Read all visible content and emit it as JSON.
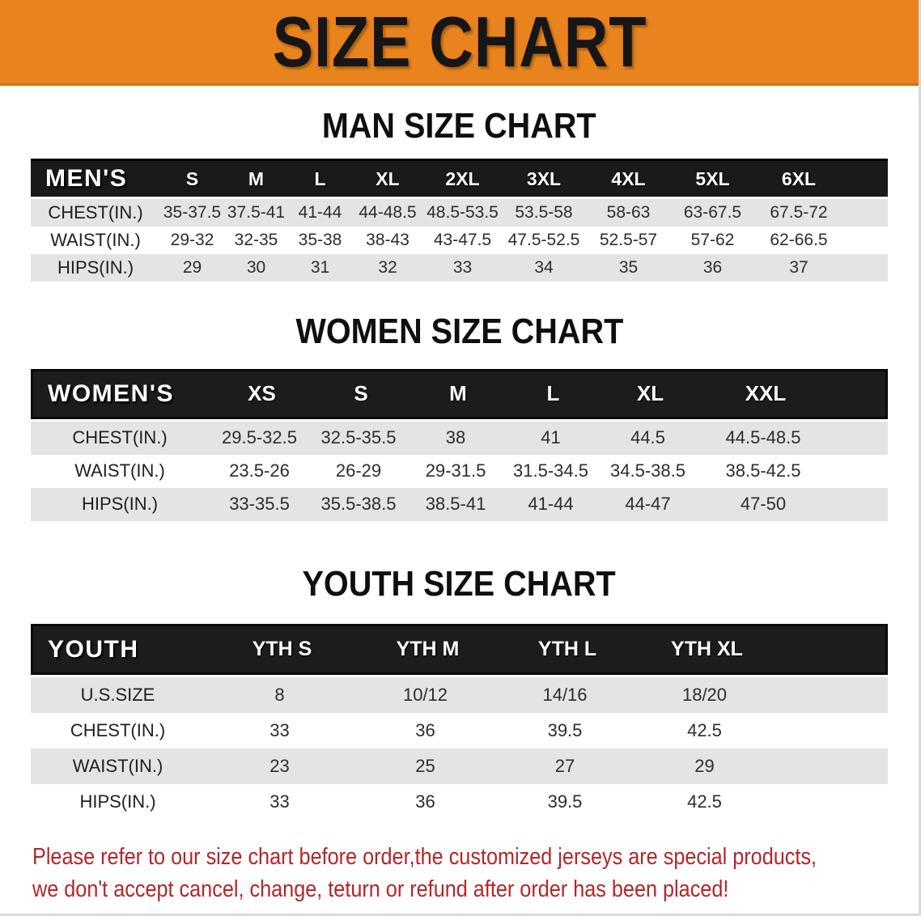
{
  "banner": {
    "title": "SIZE CHART",
    "bg_color": "#E8831D"
  },
  "colors": {
    "table_header_bg": "#1A1A1A",
    "row_stripe": "#E4E4E4",
    "footer_text": "#B2262B"
  },
  "sections": [
    {
      "heading": "MAN SIZE CHART",
      "table": {
        "header_label": "MEN'S",
        "columns": [
          "S",
          "M",
          "L",
          "XL",
          "2XL",
          "3XL",
          "4XL",
          "5XL",
          "6XL"
        ],
        "rows": [
          {
            "label": "CHEST(IN.)",
            "values": [
              "35-37.5",
              "37.5-41",
              "41-44",
              "44-48.5",
              "48.5-53.5",
              "53.5-58",
              "58-63",
              "63-67.5",
              "67.5-72"
            ]
          },
          {
            "label": "WAIST(IN.)",
            "values": [
              "29-32",
              "32-35",
              "35-38",
              "38-43",
              "43-47.5",
              "47.5-52.5",
              "52.5-57",
              "57-62",
              "62-66.5"
            ]
          },
          {
            "label": "HIPS(IN.)",
            "values": [
              "29",
              "30",
              "31",
              "32",
              "33",
              "34",
              "35",
              "36",
              "37"
            ]
          }
        ]
      }
    },
    {
      "heading": "WOMEN SIZE CHART",
      "table": {
        "header_label": "WOMEN'S",
        "columns": [
          "XS",
          "S",
          "M",
          "L",
          "XL",
          "XXL"
        ],
        "rows": [
          {
            "label": "CHEST(IN.)",
            "values": [
              "29.5-32.5",
              "32.5-35.5",
              "38",
              "41",
              "44.5",
              "44.5-48.5"
            ]
          },
          {
            "label": "WAIST(IN.)",
            "values": [
              "23.5-26",
              "26-29",
              "29-31.5",
              "31.5-34.5",
              "34.5-38.5",
              "38.5-42.5"
            ]
          },
          {
            "label": "HIPS(IN.)",
            "values": [
              "33-35.5",
              "35.5-38.5",
              "38.5-41",
              "41-44",
              "44-47",
              "47-50"
            ]
          }
        ]
      }
    },
    {
      "heading": "YOUTH SIZE CHART",
      "table": {
        "header_label": "YOUTH",
        "columns": [
          "YTH S",
          "YTH M",
          "YTH L",
          "YTH XL"
        ],
        "rows": [
          {
            "label": "U.S.SIZE",
            "values": [
              "8",
              "10/12",
              "14/16",
              "18/20"
            ]
          },
          {
            "label": "CHEST(IN.)",
            "values": [
              "33",
              "36",
              "39.5",
              "42.5"
            ]
          },
          {
            "label": "WAIST(IN.)",
            "values": [
              "23",
              "25",
              "27",
              "29"
            ]
          },
          {
            "label": "HIPS(IN.)",
            "values": [
              "33",
              "36",
              "39.5",
              "42.5"
            ]
          }
        ]
      }
    }
  ],
  "footer": {
    "line1": "Please refer to our size chart before order,the customized jerseys are special products,",
    "line2": "we don't accept cancel, change, teturn or refund after order has been placed!"
  }
}
